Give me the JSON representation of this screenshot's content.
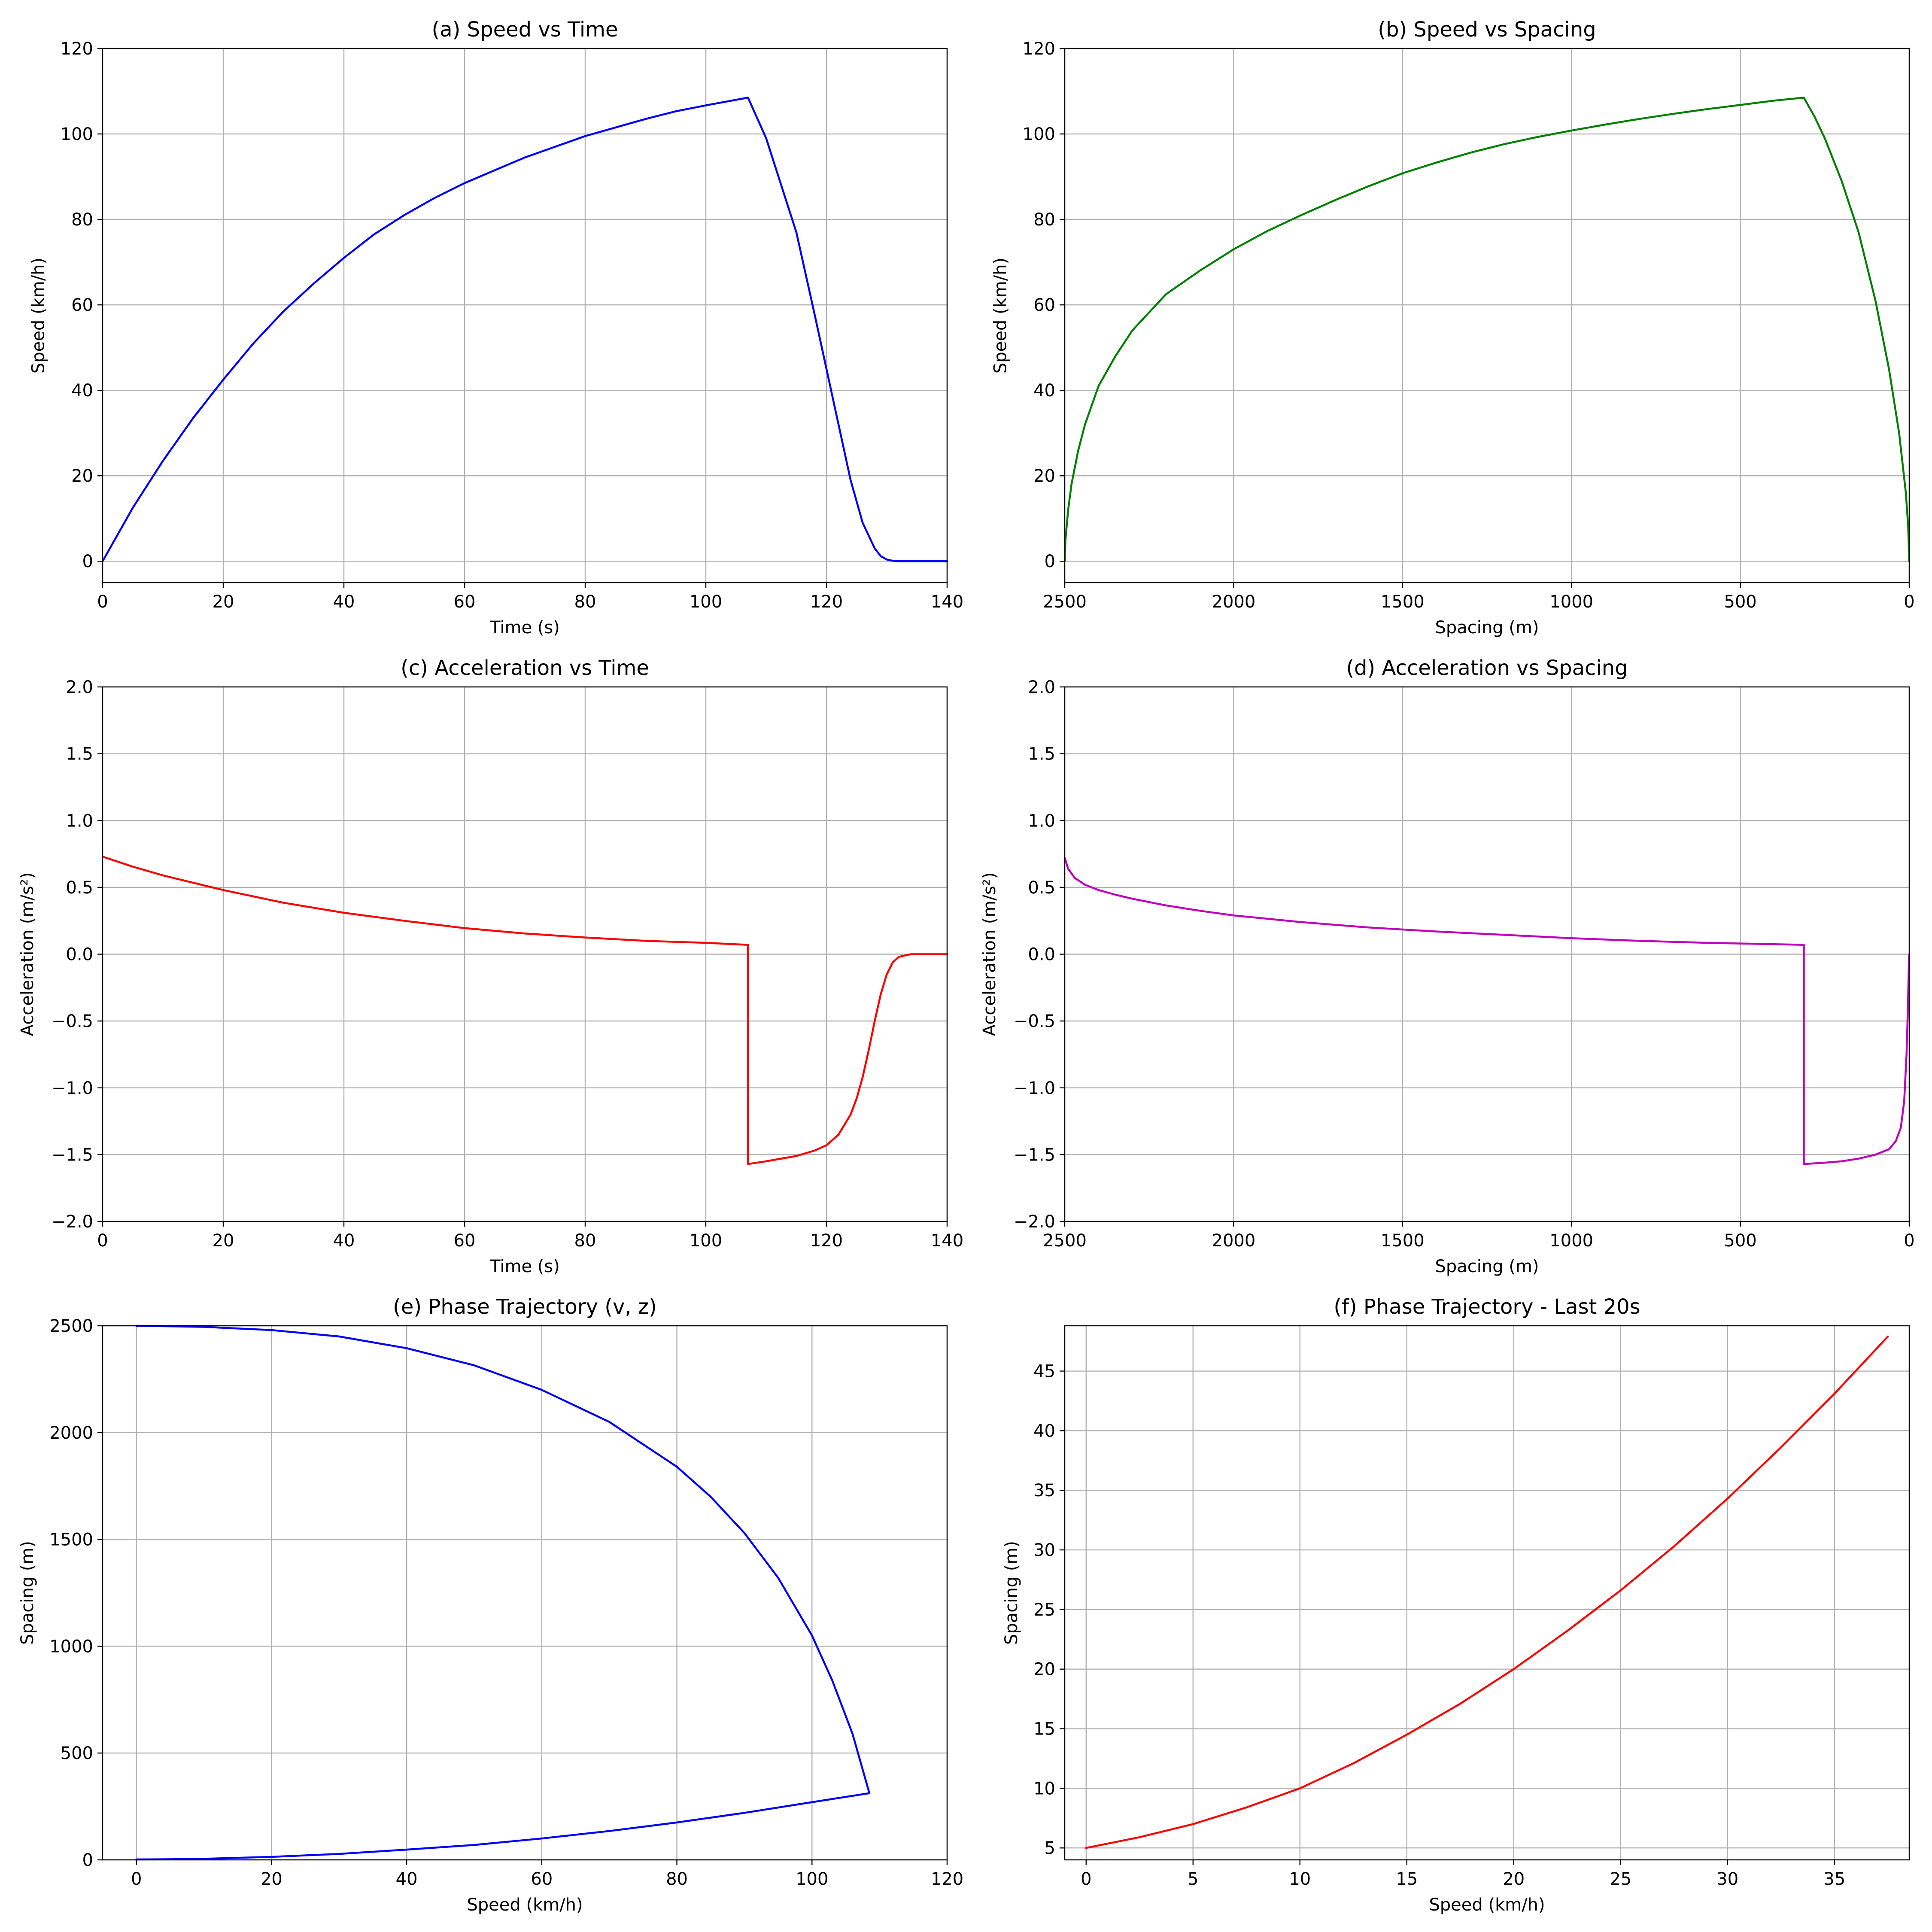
{
  "chart_data": [
    {
      "id": "a",
      "type": "line",
      "title": "(a) Speed vs Time",
      "xlabel": "Time (s)",
      "ylabel": "Speed (km/h)",
      "xlim": [
        0,
        140
      ],
      "ylim": [
        -5,
        120
      ],
      "xticks": [
        0,
        20,
        40,
        60,
        80,
        100,
        120,
        140
      ],
      "xtick_labels": [
        "0",
        "20",
        "40",
        "60",
        "80",
        "100",
        "120",
        "140"
      ],
      "yticks": [
        0,
        20,
        40,
        60,
        80,
        100,
        120
      ],
      "ytick_labels": [
        "0",
        "20",
        "40",
        "60",
        "80",
        "100",
        "120"
      ],
      "grid": true,
      "series": [
        {
          "color": "#0000ff",
          "x": [
            0,
            5,
            10,
            15,
            20,
            25,
            30,
            35,
            40,
            45,
            50,
            55,
            60,
            65,
            70,
            75,
            80,
            85,
            90,
            95,
            100,
            107,
            110,
            115,
            118,
            120,
            122,
            124,
            126,
            128,
            129,
            130,
            131,
            132,
            134,
            140
          ],
          "y": [
            0,
            12.5,
            23.5,
            33.5,
            42.5,
            51,
            58.5,
            65,
            71,
            76.5,
            81,
            85,
            88.5,
            91.5,
            94.5,
            97,
            99.5,
            101.5,
            103.5,
            105.3,
            106.7,
            108.5,
            99,
            77,
            58,
            45,
            32,
            19,
            9,
            3,
            1.2,
            0.4,
            0.1,
            0,
            0,
            0
          ]
        }
      ]
    },
    {
      "id": "b",
      "type": "line",
      "title": "(b) Speed vs Spacing",
      "xlabel": "Spacing (m)",
      "ylabel": "Speed (km/h)",
      "xlim": [
        2500,
        0
      ],
      "ylim": [
        -5,
        120
      ],
      "xticks": [
        2500,
        2000,
        1500,
        1000,
        500,
        0
      ],
      "xtick_labels": [
        "2500",
        "2000",
        "1500",
        "1000",
        "500",
        "0"
      ],
      "yticks": [
        0,
        20,
        40,
        60,
        80,
        100,
        120
      ],
      "ytick_labels": [
        "0",
        "20",
        "40",
        "60",
        "80",
        "100",
        "120"
      ],
      "grid": true,
      "series": [
        {
          "color": "#008000",
          "x": [
            2500,
            2498,
            2490,
            2480,
            2460,
            2440,
            2400,
            2350,
            2300,
            2200,
            2100,
            2000,
            1900,
            1800,
            1700,
            1600,
            1500,
            1400,
            1300,
            1200,
            1100,
            1000,
            900,
            800,
            700,
            600,
            500,
            400,
            312,
            280,
            250,
            200,
            150,
            100,
            60,
            30,
            10,
            3,
            0
          ],
          "y": [
            0,
            5,
            12,
            18,
            26,
            32,
            41,
            48,
            54,
            62.5,
            68,
            73,
            77.3,
            81,
            84.5,
            87.8,
            90.8,
            93.3,
            95.6,
            97.6,
            99.3,
            100.8,
            102.2,
            103.5,
            104.7,
            105.8,
            106.8,
            107.8,
            108.5,
            104,
            99,
            89,
            77,
            61,
            45,
            30,
            16,
            8,
            0
          ]
        }
      ]
    },
    {
      "id": "c",
      "type": "line",
      "title": "(c) Acceleration vs Time",
      "xlabel": "Time (s)",
      "ylabel": "Acceleration (m/s²)",
      "xlim": [
        0,
        140
      ],
      "ylim": [
        -2.0,
        2.0
      ],
      "xticks": [
        0,
        20,
        40,
        60,
        80,
        100,
        120,
        140
      ],
      "xtick_labels": [
        "0",
        "20",
        "40",
        "60",
        "80",
        "100",
        "120",
        "140"
      ],
      "yticks": [
        -2.0,
        -1.5,
        -1.0,
        -0.5,
        0.0,
        0.5,
        1.0,
        1.5,
        2.0
      ],
      "ytick_labels": [
        "−2.0",
        "−1.5",
        "−1.0",
        "−0.5",
        "0.0",
        "0.5",
        "1.0",
        "1.5",
        "2.0"
      ],
      "grid": true,
      "series": [
        {
          "color": "#ff0000",
          "x": [
            0,
            5,
            10,
            20,
            30,
            40,
            50,
            60,
            70,
            80,
            90,
            100,
            107,
            107,
            110,
            115,
            118,
            120,
            122,
            124,
            125,
            126,
            127,
            128,
            129,
            130,
            131,
            132,
            133,
            134,
            136,
            140
          ],
          "y": [
            0.73,
            0.655,
            0.59,
            0.48,
            0.385,
            0.31,
            0.25,
            0.195,
            0.155,
            0.125,
            0.1,
            0.085,
            0.07,
            -1.57,
            -1.55,
            -1.51,
            -1.47,
            -1.43,
            -1.35,
            -1.2,
            -1.08,
            -0.92,
            -0.72,
            -0.5,
            -0.3,
            -0.15,
            -0.06,
            -0.02,
            -0.01,
            0,
            0,
            0
          ]
        }
      ]
    },
    {
      "id": "d",
      "type": "line",
      "title": "(d) Acceleration vs Spacing",
      "xlabel": "Spacing (m)",
      "ylabel": "Acceleration (m/s²)",
      "xlim": [
        2500,
        0
      ],
      "ylim": [
        -2.0,
        2.0
      ],
      "xticks": [
        2500,
        2000,
        1500,
        1000,
        500,
        0
      ],
      "xtick_labels": [
        "2500",
        "2000",
        "1500",
        "1000",
        "500",
        "0"
      ],
      "yticks": [
        -2.0,
        -1.5,
        -1.0,
        -0.5,
        0.0,
        0.5,
        1.0,
        1.5,
        2.0
      ],
      "ytick_labels": [
        "−2.0",
        "−1.5",
        "−1.0",
        "−0.5",
        "0.0",
        "0.5",
        "1.0",
        "1.5",
        "2.0"
      ],
      "grid": true,
      "series": [
        {
          "color": "#bf00bf",
          "x": [
            2500,
            2490,
            2470,
            2440,
            2400,
            2350,
            2300,
            2200,
            2100,
            2000,
            1800,
            1600,
            1400,
            1200,
            1000,
            800,
            600,
            400,
            312,
            312,
            250,
            200,
            150,
            100,
            60,
            40,
            25,
            15,
            8,
            4,
            1,
            0
          ],
          "y": [
            0.72,
            0.64,
            0.57,
            0.52,
            0.48,
            0.445,
            0.415,
            0.365,
            0.325,
            0.29,
            0.24,
            0.2,
            0.17,
            0.145,
            0.12,
            0.1,
            0.085,
            0.075,
            0.07,
            -1.57,
            -1.56,
            -1.55,
            -1.53,
            -1.5,
            -1.46,
            -1.4,
            -1.3,
            -1.1,
            -0.75,
            -0.4,
            -0.05,
            0
          ]
        }
      ]
    },
    {
      "id": "e",
      "type": "line",
      "title": "(e) Phase Trajectory (v, z)",
      "xlabel": "Speed (km/h)",
      "ylabel": "Spacing (m)",
      "xlim": [
        -5,
        120
      ],
      "ylim": [
        0,
        2500
      ],
      "xticks": [
        0,
        20,
        40,
        60,
        80,
        100,
        120
      ],
      "xtick_labels": [
        "0",
        "20",
        "40",
        "60",
        "80",
        "100",
        "120"
      ],
      "yticks": [
        0,
        500,
        1000,
        1500,
        2000,
        2500
      ],
      "ytick_labels": [
        "0",
        "500",
        "1000",
        "1500",
        "2000",
        "2500"
      ],
      "grid": true,
      "series": [
        {
          "color": "#0000ff",
          "x": [
            0,
            10,
            20,
            30,
            40,
            50,
            60,
            70,
            80,
            85,
            90,
            95,
            100,
            103,
            106,
            108.5,
            100,
            90,
            80,
            70,
            60,
            50,
            40,
            30,
            20,
            10,
            5,
            0
          ],
          "y": [
            2500,
            2495,
            2480,
            2450,
            2395,
            2315,
            2200,
            2050,
            1840,
            1700,
            1530,
            1320,
            1050,
            840,
            590,
            312,
            270,
            220,
            175,
            135,
            100,
            70,
            48,
            28,
            14,
            5,
            3,
            2
          ]
        }
      ]
    },
    {
      "id": "f",
      "type": "line",
      "title": "(f) Phase Trajectory - Last 20s",
      "xlabel": "Speed (km/h)",
      "ylabel": "Spacing (m)",
      "xlim": [
        -1,
        38.5
      ],
      "ylim": [
        4,
        48.8
      ],
      "xticks": [
        0,
        5,
        10,
        15,
        20,
        25,
        30,
        35
      ],
      "xtick_labels": [
        "0",
        "5",
        "10",
        "15",
        "20",
        "25",
        "30",
        "35"
      ],
      "yticks": [
        5,
        10,
        15,
        20,
        25,
        30,
        35,
        40,
        45
      ],
      "ytick_labels": [
        "5",
        "10",
        "15",
        "20",
        "25",
        "30",
        "35",
        "40",
        "45"
      ],
      "grid": true,
      "series": [
        {
          "color": "#ff0000",
          "x": [
            0,
            2.5,
            5,
            7.5,
            10,
            12.5,
            15,
            17.5,
            20,
            22.5,
            25,
            27.5,
            30,
            32.5,
            35,
            37.5
          ],
          "y": [
            5,
            5.9,
            7,
            8.4,
            10,
            12.1,
            14.5,
            17.1,
            20,
            23.2,
            26.6,
            30.3,
            34.3,
            38.6,
            43.1,
            47.9
          ]
        }
      ]
    }
  ]
}
